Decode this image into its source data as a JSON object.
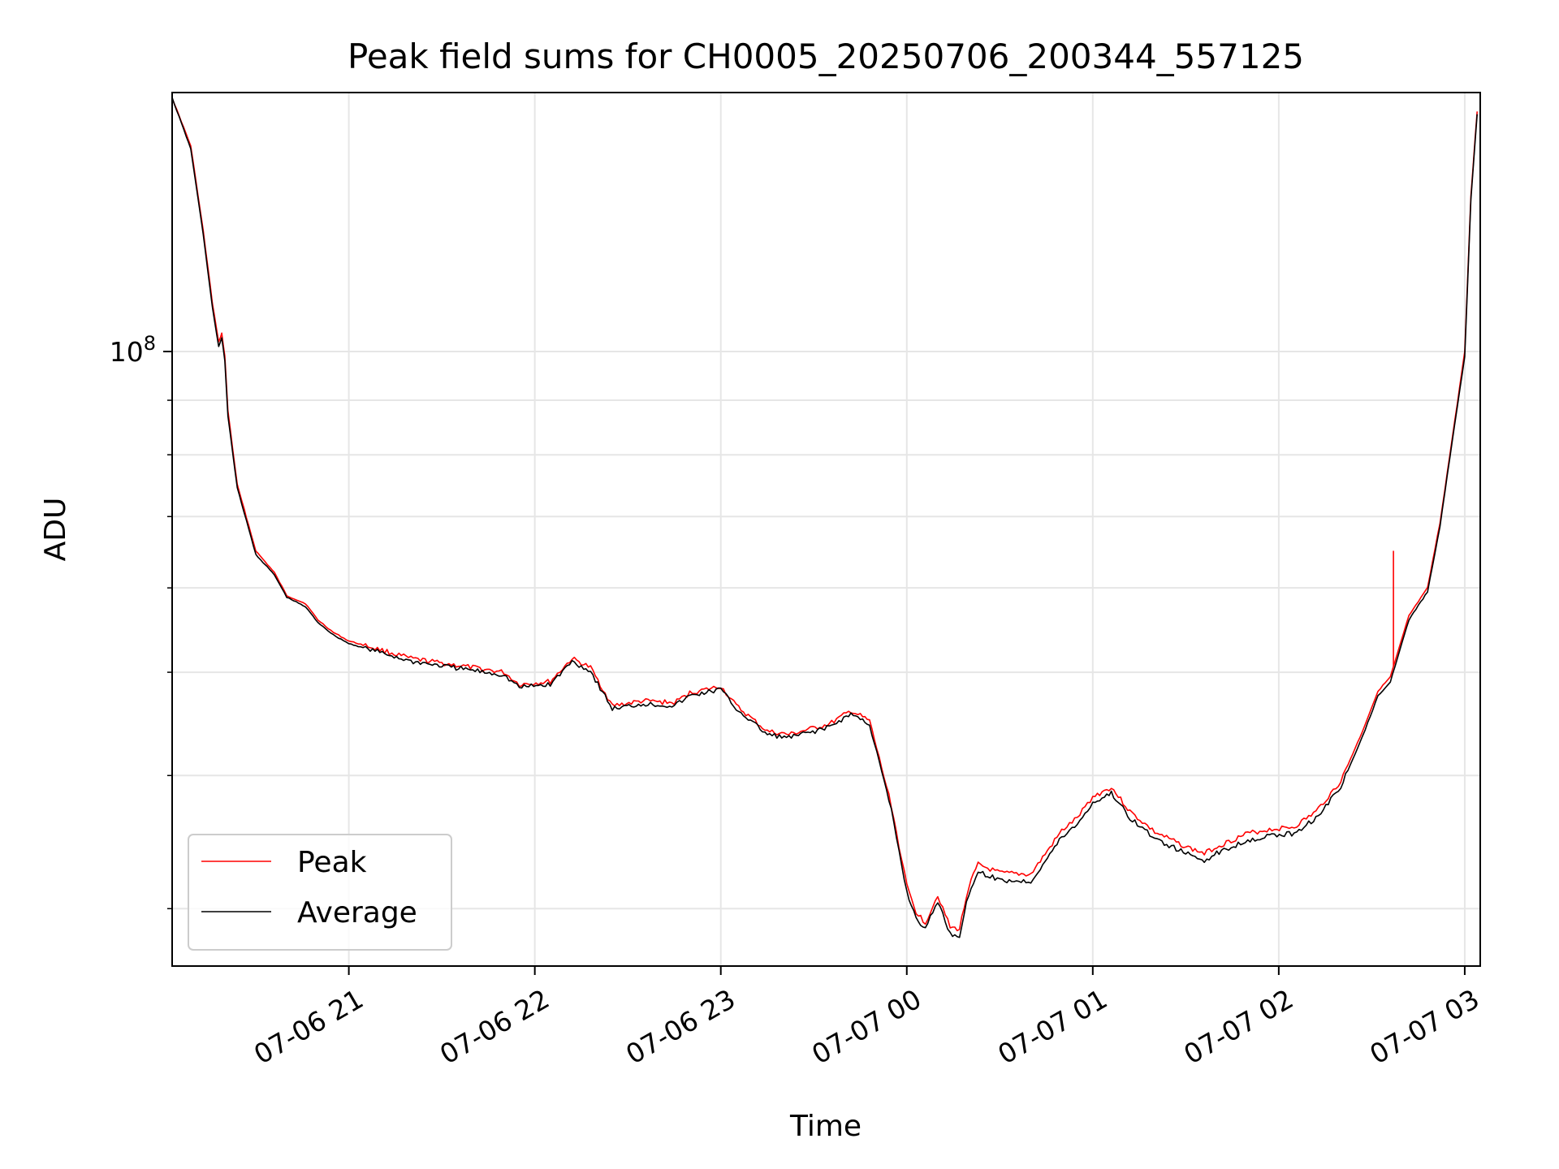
{
  "chart_data": {
    "type": "line",
    "title": "Peak field sums for CH0005_20250706_200344_557125",
    "xlabel": "Time",
    "ylabel": "ADU",
    "x_type": "datetime",
    "xlim": [
      "2025-07-06 20:03",
      "2025-07-07 03:05"
    ],
    "x_ticks": [
      {
        "label": "07-06 21",
        "value": "2025-07-06 21:00"
      },
      {
        "label": "07-06 22",
        "value": "2025-07-06 22:00"
      },
      {
        "label": "07-06 23",
        "value": "2025-07-06 23:00"
      },
      {
        "label": "07-07 00",
        "value": "2025-07-07 00:00"
      },
      {
        "label": "07-07 01",
        "value": "2025-07-07 01:00"
      },
      {
        "label": "07-07 02",
        "value": "2025-07-07 02:00"
      },
      {
        "label": "07-07 03",
        "value": "2025-07-07 03:00"
      }
    ],
    "y_scale": "log",
    "ylim": [
      26500000,
      175000000
    ],
    "y_major_ticks": [
      {
        "value": 100000000,
        "base": "10",
        "exp": "8"
      }
    ],
    "y_minor_ticks": [
      30000000,
      40000000,
      50000000,
      60000000,
      70000000,
      80000000,
      90000000,
      200000000
    ],
    "grid": true,
    "legend_position": "lower-left",
    "x": [
      "2025-07-06 20:03",
      "2025-07-06 20:09",
      "2025-07-06 20:13",
      "2025-07-06 20:16",
      "2025-07-06 20:18",
      "2025-07-06 20:19",
      "2025-07-06 20:20",
      "2025-07-06 20:21",
      "2025-07-06 20:24",
      "2025-07-06 20:30",
      "2025-07-06 20:36",
      "2025-07-06 20:40",
      "2025-07-06 20:43",
      "2025-07-06 20:46",
      "2025-07-06 20:50",
      "2025-07-06 20:55",
      "2025-07-06 21:00",
      "2025-07-06 21:10",
      "2025-07-06 21:20",
      "2025-07-06 21:30",
      "2025-07-06 21:40",
      "2025-07-06 21:50",
      "2025-07-06 21:55",
      "2025-07-06 22:05",
      "2025-07-06 22:12",
      "2025-07-06 22:18",
      "2025-07-06 22:25",
      "2025-07-06 22:35",
      "2025-07-06 22:45",
      "2025-07-06 22:50",
      "2025-07-06 23:00",
      "2025-07-06 23:05",
      "2025-07-06 23:15",
      "2025-07-06 23:22",
      "2025-07-06 23:35",
      "2025-07-06 23:42",
      "2025-07-06 23:48",
      "2025-07-06 23:55",
      "2025-07-07 00:00",
      "2025-07-07 00:03",
      "2025-07-07 00:06",
      "2025-07-07 00:10",
      "2025-07-07 00:14",
      "2025-07-07 00:17",
      "2025-07-07 00:20",
      "2025-07-07 00:23",
      "2025-07-07 00:30",
      "2025-07-07 00:40",
      "2025-07-07 00:50",
      "2025-07-07 00:55",
      "2025-07-07 01:00",
      "2025-07-07 01:06",
      "2025-07-07 01:12",
      "2025-07-07 01:20",
      "2025-07-07 01:30",
      "2025-07-07 01:36",
      "2025-07-07 01:40",
      "2025-07-07 01:50",
      "2025-07-07 01:57",
      "2025-07-07 02:05",
      "2025-07-07 02:12",
      "2025-07-07 02:20",
      "2025-07-07 02:27",
      "2025-07-07 02:32",
      "2025-07-07 02:36",
      "2025-07-07 02:42",
      "2025-07-07 02:48",
      "2025-07-07 02:52",
      "2025-07-07 02:56",
      "2025-07-07 03:00",
      "2025-07-07 03:02",
      "2025-07-07 03:04"
    ],
    "series": [
      {
        "name": "Peak",
        "color": "#ff0000",
        "values": [
          173000000,
          156000000,
          130000000,
          111000000,
          102000000,
          104000000,
          99000000,
          88000000,
          75000000,
          65000000,
          62000000,
          59000000,
          58500000,
          58000000,
          56000000,
          54500000,
          53500000,
          52500000,
          51500000,
          51000000,
          50500000,
          50000000,
          48700000,
          49000000,
          51500000,
          50500000,
          46500000,
          47000000,
          46800000,
          47800000,
          48500000,
          46500000,
          44000000,
          43700000,
          44700000,
          46000000,
          45000000,
          37500000,
          31500000,
          29800000,
          29100000,
          30900000,
          28800000,
          28700000,
          31500000,
          33000000,
          32400000,
          32300000,
          35500000,
          36500000,
          38200000,
          39000000,
          37000000,
          35400000,
          34300000,
          33800000,
          34300000,
          35300000,
          35600000,
          35800000,
          37000000,
          39500000,
          44000000,
          48000000,
          49500000,
          56500000,
          60000000,
          69000000,
          83000000,
          100000000,
          140000000,
          168000000
        ]
      },
      {
        "name": "Average",
        "color": "#000000",
        "values": [
          173000000,
          155000000,
          129000000,
          110000000,
          101000000,
          103000000,
          98000000,
          87000000,
          74500000,
          64500000,
          61700000,
          58800000,
          58200000,
          57600000,
          55700000,
          54200000,
          53200000,
          52200000,
          51200000,
          50700000,
          50200000,
          49700000,
          48400000,
          48700000,
          51200000,
          50100000,
          46200000,
          46700000,
          46500000,
          47500000,
          48200000,
          46200000,
          43700000,
          43400000,
          44400000,
          45700000,
          44700000,
          37100000,
          31100000,
          29400000,
          28700000,
          30500000,
          28400000,
          28300000,
          31000000,
          32500000,
          31900000,
          31800000,
          35000000,
          36000000,
          37700000,
          38500000,
          36500000,
          34900000,
          33800000,
          33300000,
          33800000,
          34800000,
          35100000,
          35300000,
          36500000,
          39000000,
          43500000,
          47500000,
          49000000,
          56000000,
          59500000,
          68500000,
          82500000,
          99000000,
          139000000,
          167000000
        ]
      }
    ],
    "annotations": [
      {
        "series": "Peak",
        "x": "2025-07-07 02:37",
        "y": 65000000,
        "note": "spike"
      }
    ]
  }
}
